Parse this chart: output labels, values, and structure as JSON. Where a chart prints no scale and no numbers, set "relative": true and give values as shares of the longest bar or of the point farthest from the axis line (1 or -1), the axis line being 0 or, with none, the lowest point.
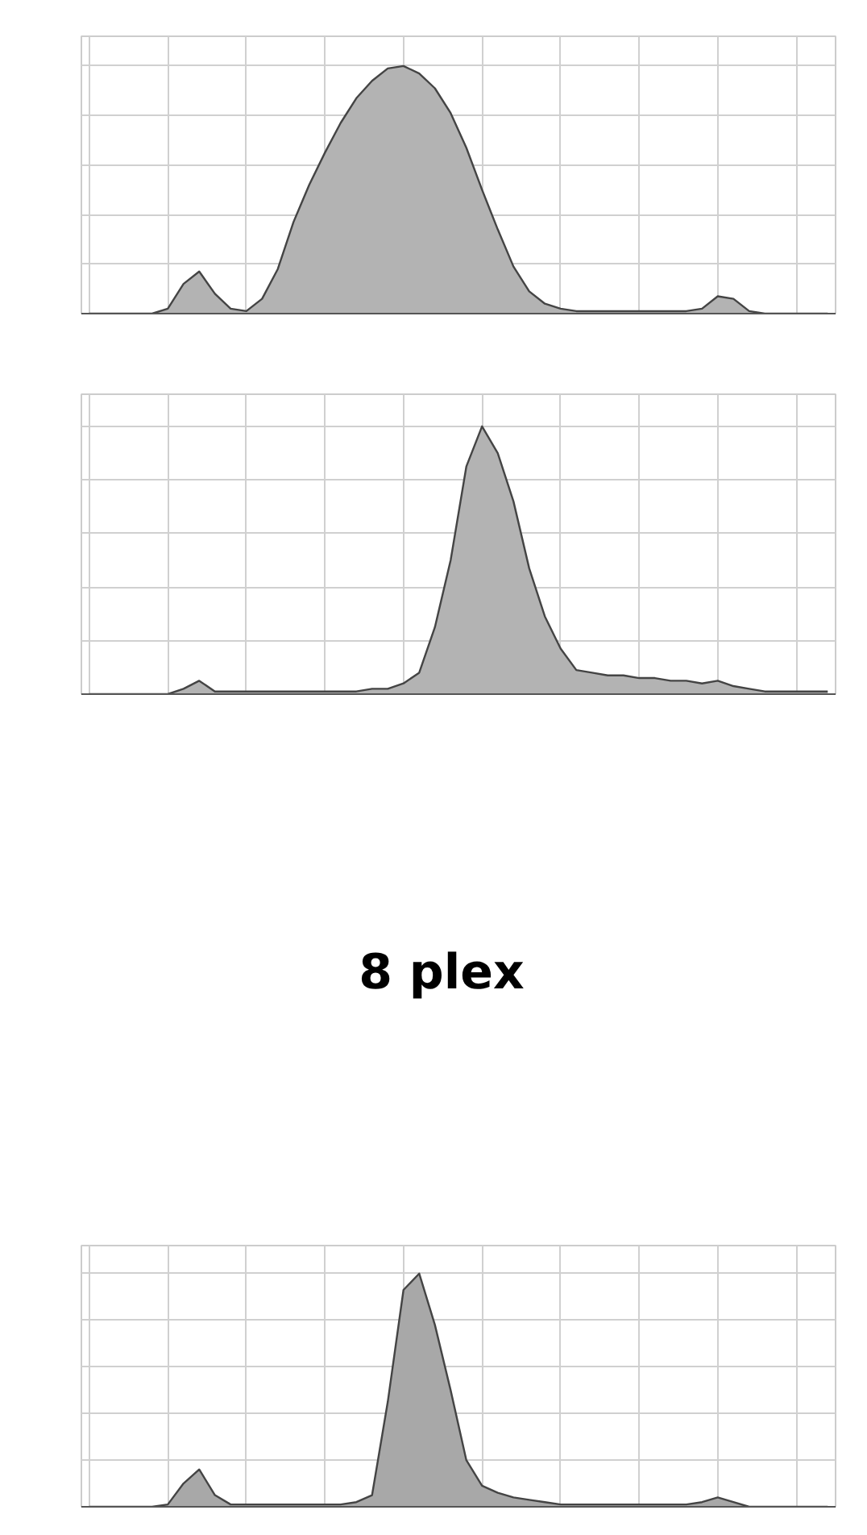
{
  "chart_data": [
    {
      "type": "area",
      "relative": true,
      "grid": true,
      "color": "#b3b3b3",
      "categories": [
        null,
        null,
        null,
        null,
        null,
        null,
        null,
        null,
        null,
        null,
        null,
        null,
        null,
        null,
        null,
        null,
        null,
        null,
        null,
        null,
        null,
        null,
        null,
        null,
        null,
        null,
        null,
        null,
        null,
        null,
        null,
        null,
        null,
        null,
        null,
        null,
        null,
        null,
        null,
        null,
        null,
        null,
        null,
        null,
        null,
        null,
        null,
        null
      ],
      "values": [
        0,
        0,
        0,
        0,
        0,
        0.02,
        0.12,
        0.17,
        0.08,
        0.02,
        0.01,
        0.06,
        0.18,
        0.37,
        0.52,
        0.65,
        0.77,
        0.87,
        0.94,
        0.99,
        1.0,
        0.97,
        0.91,
        0.81,
        0.67,
        0.5,
        0.34,
        0.19,
        0.09,
        0.04,
        0.02,
        0.01,
        0.01,
        0.01,
        0.01,
        0.01,
        0.01,
        0.01,
        0.01,
        0.02,
        0.07,
        0.06,
        0.01,
        0,
        0,
        0,
        0,
        0
      ]
    },
    {
      "type": "area",
      "relative": true,
      "grid": true,
      "color": "#b3b3b3",
      "categories": [
        null,
        null,
        null,
        null,
        null,
        null,
        null,
        null,
        null,
        null,
        null,
        null,
        null,
        null,
        null,
        null,
        null,
        null,
        null,
        null,
        null,
        null,
        null,
        null,
        null,
        null,
        null,
        null,
        null,
        null,
        null,
        null,
        null,
        null,
        null,
        null,
        null,
        null,
        null,
        null,
        null,
        null,
        null,
        null,
        null,
        null,
        null,
        null
      ],
      "values": [
        0,
        0,
        0,
        0,
        0,
        0,
        0.02,
        0.05,
        0.01,
        0.01,
        0.01,
        0.01,
        0.01,
        0.01,
        0.01,
        0.01,
        0.01,
        0.01,
        0.02,
        0.02,
        0.04,
        0.08,
        0.25,
        0.5,
        0.85,
        1.0,
        0.9,
        0.72,
        0.47,
        0.29,
        0.17,
        0.09,
        0.08,
        0.07,
        0.07,
        0.06,
        0.06,
        0.05,
        0.05,
        0.04,
        0.05,
        0.03,
        0.02,
        0.01,
        0.01,
        0.01,
        0.01,
        0.01
      ]
    },
    {
      "type": "other",
      "title": "8 plex"
    },
    {
      "type": "area",
      "relative": true,
      "grid": true,
      "color": "#a8a8a8",
      "categories": [
        null,
        null,
        null,
        null,
        null,
        null,
        null,
        null,
        null,
        null,
        null,
        null,
        null,
        null,
        null,
        null,
        null,
        null,
        null,
        null,
        null,
        null,
        null,
        null,
        null,
        null,
        null,
        null,
        null,
        null,
        null,
        null,
        null,
        null,
        null,
        null,
        null,
        null,
        null,
        null,
        null,
        null,
        null,
        null,
        null,
        null,
        null,
        null
      ],
      "values": [
        0,
        0,
        0,
        0,
        0,
        0.01,
        0.1,
        0.16,
        0.05,
        0.01,
        0.01,
        0.01,
        0.01,
        0.01,
        0.01,
        0.01,
        0.01,
        0.02,
        0.05,
        0.45,
        0.93,
        1.0,
        0.78,
        0.5,
        0.2,
        0.09,
        0.06,
        0.04,
        0.03,
        0.02,
        0.01,
        0.01,
        0.01,
        0.01,
        0.01,
        0.01,
        0.01,
        0.01,
        0.01,
        0.02,
        0.04,
        0.02,
        0,
        0,
        0,
        0,
        0,
        0
      ]
    }
  ]
}
